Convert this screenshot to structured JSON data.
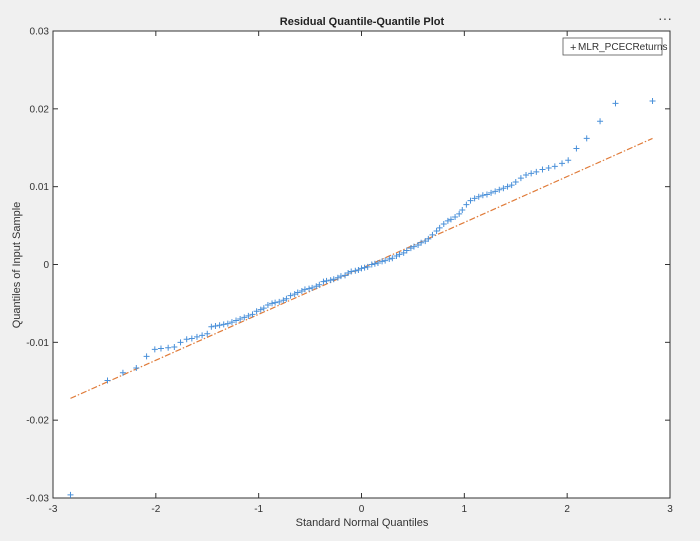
{
  "toolbar": {
    "more_icon": "more-options-icon",
    "more_label": "···"
  },
  "chart_data": {
    "type": "scatter",
    "title": "Residual Quantile-Quantile Plot",
    "xlabel": "Standard Normal Quantiles",
    "ylabel": "Quantiles of Input Sample",
    "xlim": [
      -3,
      3
    ],
    "ylim": [
      -0.03,
      0.03
    ],
    "xticks": [
      -3,
      -2,
      -1,
      0,
      1,
      2,
      3
    ],
    "xtick_labels": [
      "-3",
      "-2",
      "-1",
      "0",
      "1",
      "2",
      "3"
    ],
    "yticks": [
      -0.03,
      -0.02,
      -0.01,
      0,
      0.01,
      0.02,
      0.03
    ],
    "ytick_labels": [
      "-0.03",
      "-0.02",
      "-0.01",
      "0",
      "0.01",
      "0.02",
      "0.03"
    ],
    "grid": false,
    "legend_position": "top-right",
    "colors": {
      "series": "#4a90d9",
      "reference": "#e07b39",
      "axes": "#333333",
      "background": "#ffffff"
    },
    "series": [
      {
        "name": "MLR_PCECReturns",
        "marker": "+",
        "x": [
          -2.83,
          -2.47,
          -2.32,
          -2.19,
          -2.09,
          -2.01,
          -1.95,
          -1.88,
          -1.82,
          -1.76,
          -1.7,
          -1.65,
          -1.6,
          -1.55,
          -1.5,
          -1.46,
          -1.42,
          -1.38,
          -1.34,
          -1.3,
          -1.26,
          -1.22,
          -1.18,
          -1.14,
          -1.1,
          -1.06,
          -1.02,
          -0.98,
          -0.95,
          -0.91,
          -0.87,
          -0.84,
          -0.8,
          -0.76,
          -0.73,
          -0.69,
          -0.65,
          -0.62,
          -0.58,
          -0.55,
          -0.51,
          -0.48,
          -0.44,
          -0.41,
          -0.37,
          -0.34,
          -0.3,
          -0.27,
          -0.23,
          -0.2,
          -0.16,
          -0.13,
          -0.1,
          -0.06,
          -0.03,
          0.0,
          0.03,
          0.06,
          0.1,
          0.13,
          0.16,
          0.2,
          0.23,
          0.27,
          0.3,
          0.34,
          0.37,
          0.41,
          0.44,
          0.48,
          0.51,
          0.55,
          0.58,
          0.62,
          0.65,
          0.69,
          0.73,
          0.76,
          0.8,
          0.84,
          0.87,
          0.91,
          0.95,
          0.98,
          1.02,
          1.06,
          1.1,
          1.14,
          1.18,
          1.22,
          1.26,
          1.3,
          1.34,
          1.38,
          1.42,
          1.46,
          1.5,
          1.55,
          1.6,
          1.65,
          1.7,
          1.76,
          1.82,
          1.88,
          1.95,
          2.01,
          2.09,
          2.19,
          2.32,
          2.47,
          2.83
        ],
        "y": [
          -0.0296,
          -0.0149,
          -0.0139,
          -0.0133,
          -0.0118,
          -0.0109,
          -0.0108,
          -0.0107,
          -0.0106,
          -0.01,
          -0.0096,
          -0.0095,
          -0.0093,
          -0.0091,
          -0.0089,
          -0.008,
          -0.0079,
          -0.0078,
          -0.0077,
          -0.0076,
          -0.0074,
          -0.0072,
          -0.007,
          -0.0068,
          -0.0066,
          -0.0064,
          -0.006,
          -0.0058,
          -0.0056,
          -0.0052,
          -0.005,
          -0.0049,
          -0.0048,
          -0.0046,
          -0.0044,
          -0.004,
          -0.0038,
          -0.0036,
          -0.0034,
          -0.0032,
          -0.0031,
          -0.003,
          -0.0028,
          -0.0026,
          -0.0022,
          -0.0021,
          -0.002,
          -0.0019,
          -0.0017,
          -0.0015,
          -0.0014,
          -0.0011,
          -0.0009,
          -0.0008,
          -0.0007,
          -0.0005,
          -0.0004,
          -0.0003,
          0.0,
          0.0001,
          0.0002,
          0.0004,
          0.0005,
          0.0007,
          0.0008,
          0.0011,
          0.0013,
          0.0015,
          0.0018,
          0.0021,
          0.0023,
          0.0025,
          0.0028,
          0.003,
          0.0033,
          0.0038,
          0.0043,
          0.0047,
          0.0052,
          0.0056,
          0.0058,
          0.0061,
          0.0065,
          0.007,
          0.0077,
          0.0082,
          0.0085,
          0.0087,
          0.0089,
          0.009,
          0.0092,
          0.0094,
          0.0096,
          0.0098,
          0.01,
          0.0102,
          0.0106,
          0.0111,
          0.0115,
          0.0117,
          0.0119,
          0.0122,
          0.0124,
          0.0126,
          0.013,
          0.0134,
          0.0149,
          0.0162,
          0.0184,
          0.0207,
          0.021
        ]
      }
    ],
    "reference_line": {
      "style": "dash-dot",
      "x": [
        -2.83,
        2.83
      ],
      "y": [
        -0.0172,
        0.0162
      ]
    }
  }
}
